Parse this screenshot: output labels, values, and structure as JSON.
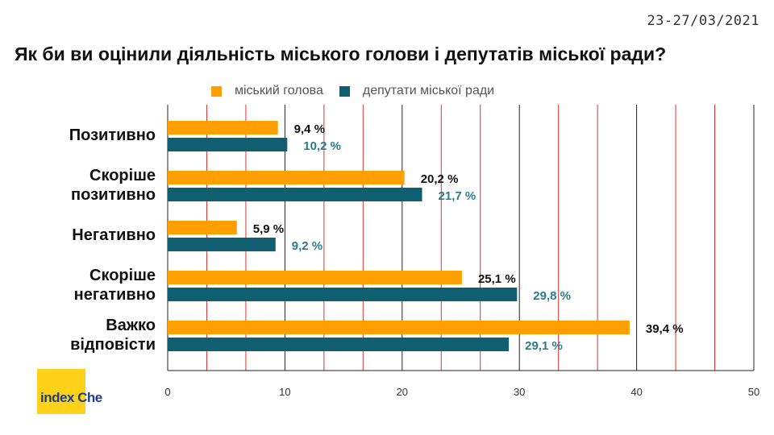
{
  "header": {
    "date": "23-27/03/2021",
    "title": "Як би ви оцінили діяльність міського голови і депутатів міської ради?"
  },
  "logo": {
    "word1": "index",
    "word2": "Che"
  },
  "colors": {
    "series_1": "#ffa000",
    "series_2": "#0f5f70",
    "label_2": "#2a7c8c",
    "grid_black": "#222222",
    "grid_red": "#e03030"
  },
  "chart_data": {
    "type": "bar",
    "orientation": "horizontal",
    "title": "Як би ви оцінили діяльність міського голови і депутатів міської ради?",
    "categories": [
      "Позитивно",
      "Скоріше позитивно",
      "Негативно",
      "Скоріше негативно",
      "Важко відповісти"
    ],
    "category_lines": [
      [
        "Позитивно"
      ],
      [
        "Скоріше",
        "позитивно"
      ],
      [
        "Негативно"
      ],
      [
        "Скоріше",
        "негативно"
      ],
      [
        "Важко",
        "відповісти"
      ]
    ],
    "series": [
      {
        "name": "міський голова",
        "values": [
          9.4,
          20.2,
          5.9,
          25.1,
          39.4
        ],
        "labels": [
          "9,4 %",
          "20,2 %",
          "5,9 %",
          "25,1 %",
          "39,4 %"
        ]
      },
      {
        "name": "депутати міської ради",
        "values": [
          10.2,
          21.7,
          9.2,
          29.8,
          29.1
        ],
        "labels": [
          "10,2 %",
          "21,7 %",
          "9,2 %",
          "29,8 %",
          "29,1 %"
        ]
      }
    ],
    "xlim": [
      0,
      50
    ],
    "xticks": [
      0,
      10,
      20,
      30,
      40,
      50
    ],
    "xtick_labels": [
      "0",
      "10",
      "20",
      "30",
      "40",
      "50"
    ],
    "grid": true,
    "legend_position": "top"
  }
}
